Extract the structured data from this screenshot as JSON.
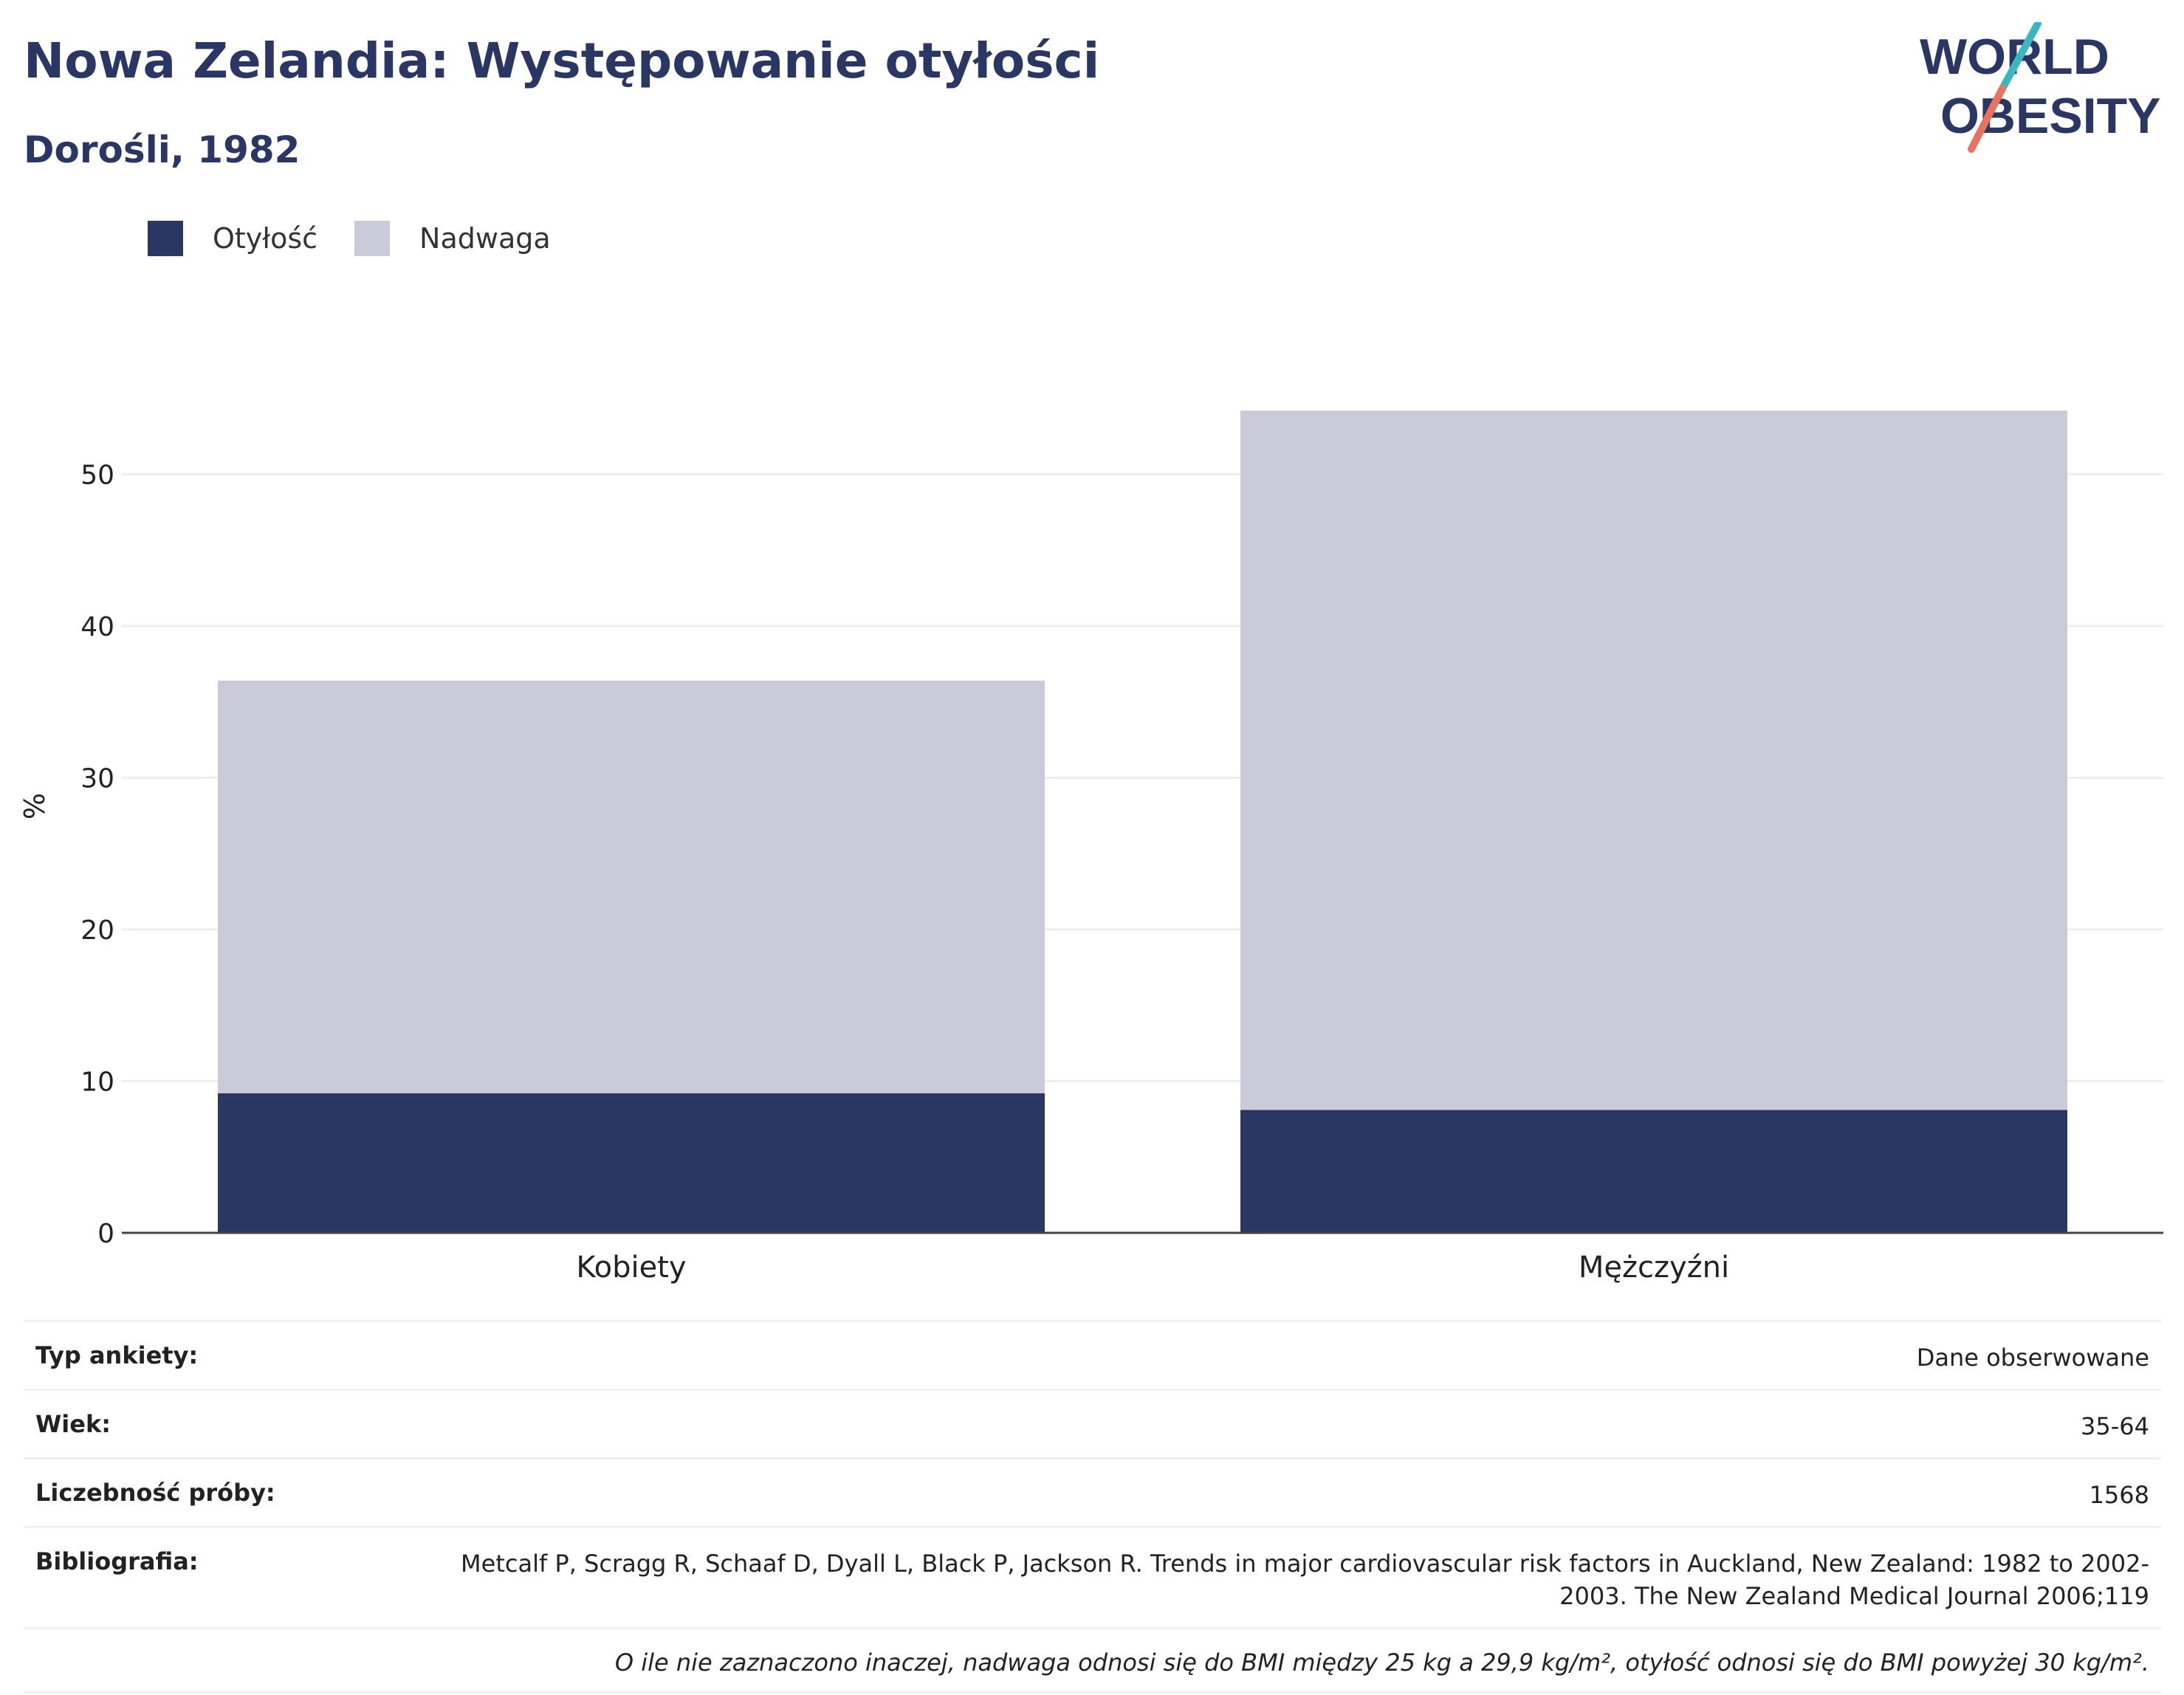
{
  "header": {
    "title": "Nowa Zelandia: Występowanie otyłości",
    "subtitle": "Dorośli, 1982"
  },
  "logo": {
    "line1": "WORLD",
    "line2": "OBESITY",
    "colors": {
      "text": "#2a3764",
      "slash_top": "#3ab6c1",
      "slash_bottom": "#e8735e"
    }
  },
  "legend": [
    {
      "label": "Otyłość",
      "color": "#2a3764"
    },
    {
      "label": "Nadwaga",
      "color": "#c9ccd8"
    }
  ],
  "chart_data": {
    "type": "bar",
    "stacked": true,
    "categories": [
      "Kobiety",
      "Mężczyźni"
    ],
    "series": [
      {
        "name": "Otyłość",
        "values": [
          9.2,
          8.1
        ],
        "color": "#2a3764"
      },
      {
        "name": "Nadwaga",
        "values": [
          27.2,
          46.1
        ],
        "color": "#c9ccd8"
      }
    ],
    "ylabel": "%",
    "ylim": [
      0,
      58
    ],
    "yticks": [
      0,
      10,
      20,
      30,
      40,
      50
    ],
    "grid": true,
    "legend_position": "top-left"
  },
  "info": {
    "rows": [
      {
        "key": "Typ ankiety:",
        "value": "Dane obserwowane"
      },
      {
        "key": "Wiek:",
        "value": "35-64"
      },
      {
        "key": "Liczebność próby:",
        "value": "1568"
      },
      {
        "key": "Bibliografia:",
        "value": "Metcalf P, Scragg R, Schaaf D, Dyall L, Black P, Jackson R. Trends in major cardiovascular risk factors in Auckland, New Zealand: 1982 to 2002-2003. The New Zealand Medical Journal 2006;119"
      }
    ],
    "note": "O ile nie zaznaczono inaczej, nadwaga odnosi się do BMI między 25 kg a 29,9 kg/m², otyłość odnosi się do BMI powyżej 30 kg/m²."
  }
}
